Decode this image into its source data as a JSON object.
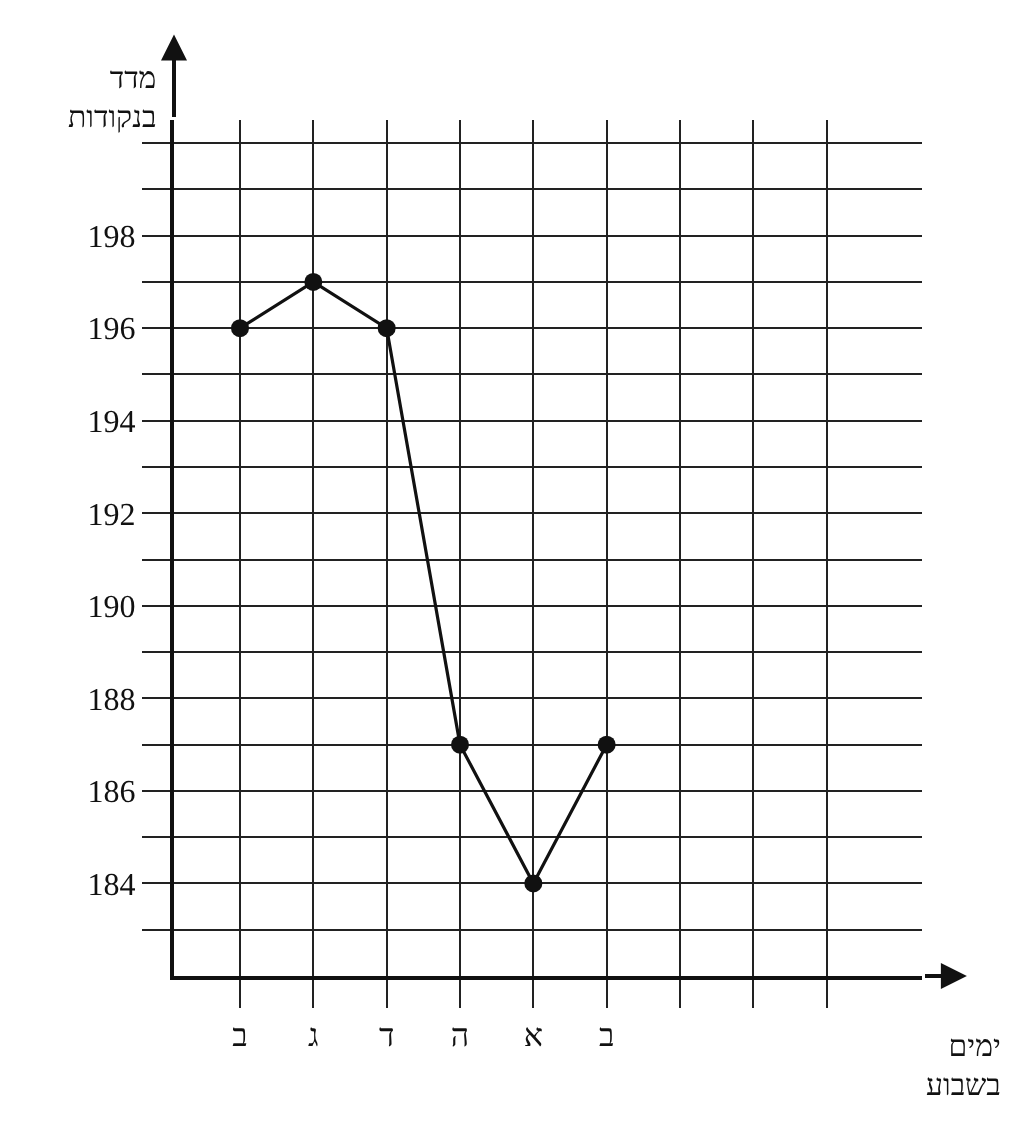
{
  "chart_data": {
    "type": "line",
    "xlabel": "ימים בשבוע",
    "ylabel": "מדד בנקודות",
    "categories": [
      "ב",
      "ג",
      "ד",
      "ה",
      "א",
      "ב",
      null,
      null,
      null
    ],
    "series": [
      {
        "color": "#111111",
        "values": [
          196,
          197,
          196,
          187,
          184,
          187,
          null,
          null,
          null
        ]
      }
    ],
    "ylim": [
      182,
      200.5
    ],
    "yticks": [
      {
        "value": 183,
        "label": null
      },
      184,
      {
        "value": 185,
        "label": null
      },
      186,
      {
        "value": 187,
        "label": null
      },
      188,
      {
        "value": 189,
        "label": null
      },
      190,
      {
        "value": 191,
        "label": null
      },
      192,
      {
        "value": 193,
        "label": null
      },
      194,
      {
        "value": 195,
        "label": null
      },
      196,
      {
        "value": 197,
        "label": null
      },
      198,
      {
        "value": 199,
        "label": null
      },
      {
        "value": 200,
        "label": null
      }
    ],
    "grid": true,
    "marker": "circle",
    "line_style": "solid",
    "legend": false
  }
}
